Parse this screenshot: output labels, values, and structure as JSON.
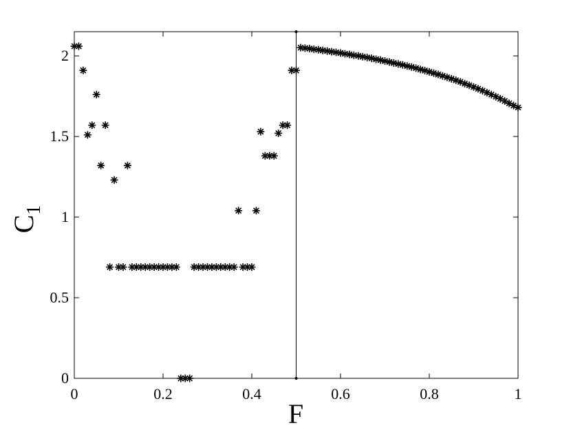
{
  "chart_data": {
    "type": "scatter",
    "marker": "asterisk",
    "color": "#000000",
    "title": "",
    "xlabel": "F",
    "ylabel": "C",
    "ylabel_subscript": "1",
    "xlim": [
      0,
      1
    ],
    "ylim": [
      0,
      2.15
    ],
    "xticks": [
      0,
      0.2,
      0.4,
      0.6,
      0.8,
      1
    ],
    "xtick_labels": [
      "0",
      "0.2",
      "0.4",
      "0.6",
      "0.8",
      "1"
    ],
    "yticks": [
      0,
      0.5,
      1,
      1.5,
      2
    ],
    "ytick_labels": [
      "0",
      "0.5",
      "1",
      "1.5",
      "2"
    ],
    "grid": false,
    "reference_line_x": 0.5,
    "points": [
      [
        0.0,
        2.06
      ],
      [
        0.01,
        2.06
      ],
      [
        0.02,
        1.91
      ],
      [
        0.03,
        1.51
      ],
      [
        0.04,
        1.57
      ],
      [
        0.05,
        1.76
      ],
      [
        0.06,
        1.32
      ],
      [
        0.07,
        1.57
      ],
      [
        0.08,
        0.69
      ],
      [
        0.09,
        1.23
      ],
      [
        0.1,
        0.69
      ],
      [
        0.11,
        0.69
      ],
      [
        0.12,
        1.32
      ],
      [
        0.13,
        0.69
      ],
      [
        0.14,
        0.69
      ],
      [
        0.15,
        0.69
      ],
      [
        0.16,
        0.69
      ],
      [
        0.17,
        0.69
      ],
      [
        0.18,
        0.69
      ],
      [
        0.19,
        0.69
      ],
      [
        0.2,
        0.69
      ],
      [
        0.21,
        0.69
      ],
      [
        0.22,
        0.69
      ],
      [
        0.23,
        0.69
      ],
      [
        0.24,
        0.0
      ],
      [
        0.25,
        0.0
      ],
      [
        0.26,
        0.0
      ],
      [
        0.27,
        0.69
      ],
      [
        0.28,
        0.69
      ],
      [
        0.29,
        0.69
      ],
      [
        0.3,
        0.69
      ],
      [
        0.31,
        0.69
      ],
      [
        0.32,
        0.69
      ],
      [
        0.33,
        0.69
      ],
      [
        0.34,
        0.69
      ],
      [
        0.35,
        0.69
      ],
      [
        0.36,
        0.69
      ],
      [
        0.37,
        1.04
      ],
      [
        0.38,
        0.69
      ],
      [
        0.39,
        0.69
      ],
      [
        0.4,
        0.69
      ],
      [
        0.41,
        1.04
      ],
      [
        0.42,
        1.53
      ],
      [
        0.43,
        1.38
      ],
      [
        0.44,
        1.38
      ],
      [
        0.45,
        1.38
      ],
      [
        0.46,
        1.52
      ],
      [
        0.47,
        1.57
      ],
      [
        0.48,
        1.57
      ],
      [
        0.49,
        1.91
      ],
      [
        0.5,
        1.91
      ],
      [
        0.51,
        2.051
      ],
      [
        0.52,
        2.048
      ],
      [
        0.53,
        2.045
      ],
      [
        0.54,
        2.041
      ],
      [
        0.55,
        2.038
      ],
      [
        0.56,
        2.034
      ],
      [
        0.57,
        2.03
      ],
      [
        0.58,
        2.026
      ],
      [
        0.59,
        2.022
      ],
      [
        0.6,
        2.018
      ],
      [
        0.61,
        2.013
      ],
      [
        0.62,
        2.009
      ],
      [
        0.63,
        2.004
      ],
      [
        0.64,
        2.0
      ],
      [
        0.65,
        1.995
      ],
      [
        0.66,
        1.99
      ],
      [
        0.67,
        1.985
      ],
      [
        0.68,
        1.979
      ],
      [
        0.69,
        1.974
      ],
      [
        0.7,
        1.968
      ],
      [
        0.71,
        1.962
      ],
      [
        0.72,
        1.956
      ],
      [
        0.73,
        1.95
      ],
      [
        0.74,
        1.944
      ],
      [
        0.75,
        1.937
      ],
      [
        0.76,
        1.931
      ],
      [
        0.77,
        1.924
      ],
      [
        0.78,
        1.916
      ],
      [
        0.79,
        1.909
      ],
      [
        0.8,
        1.901
      ],
      [
        0.81,
        1.893
      ],
      [
        0.82,
        1.885
      ],
      [
        0.83,
        1.876
      ],
      [
        0.84,
        1.867
      ],
      [
        0.85,
        1.858
      ],
      [
        0.86,
        1.849
      ],
      [
        0.87,
        1.839
      ],
      [
        0.88,
        1.828
      ],
      [
        0.89,
        1.818
      ],
      [
        0.9,
        1.807
      ],
      [
        0.91,
        1.796
      ],
      [
        0.92,
        1.784
      ],
      [
        0.93,
        1.772
      ],
      [
        0.94,
        1.76
      ],
      [
        0.95,
        1.747
      ],
      [
        0.96,
        1.734
      ],
      [
        0.97,
        1.72
      ],
      [
        0.98,
        1.706
      ],
      [
        0.99,
        1.692
      ],
      [
        1.0,
        1.68
      ]
    ]
  }
}
